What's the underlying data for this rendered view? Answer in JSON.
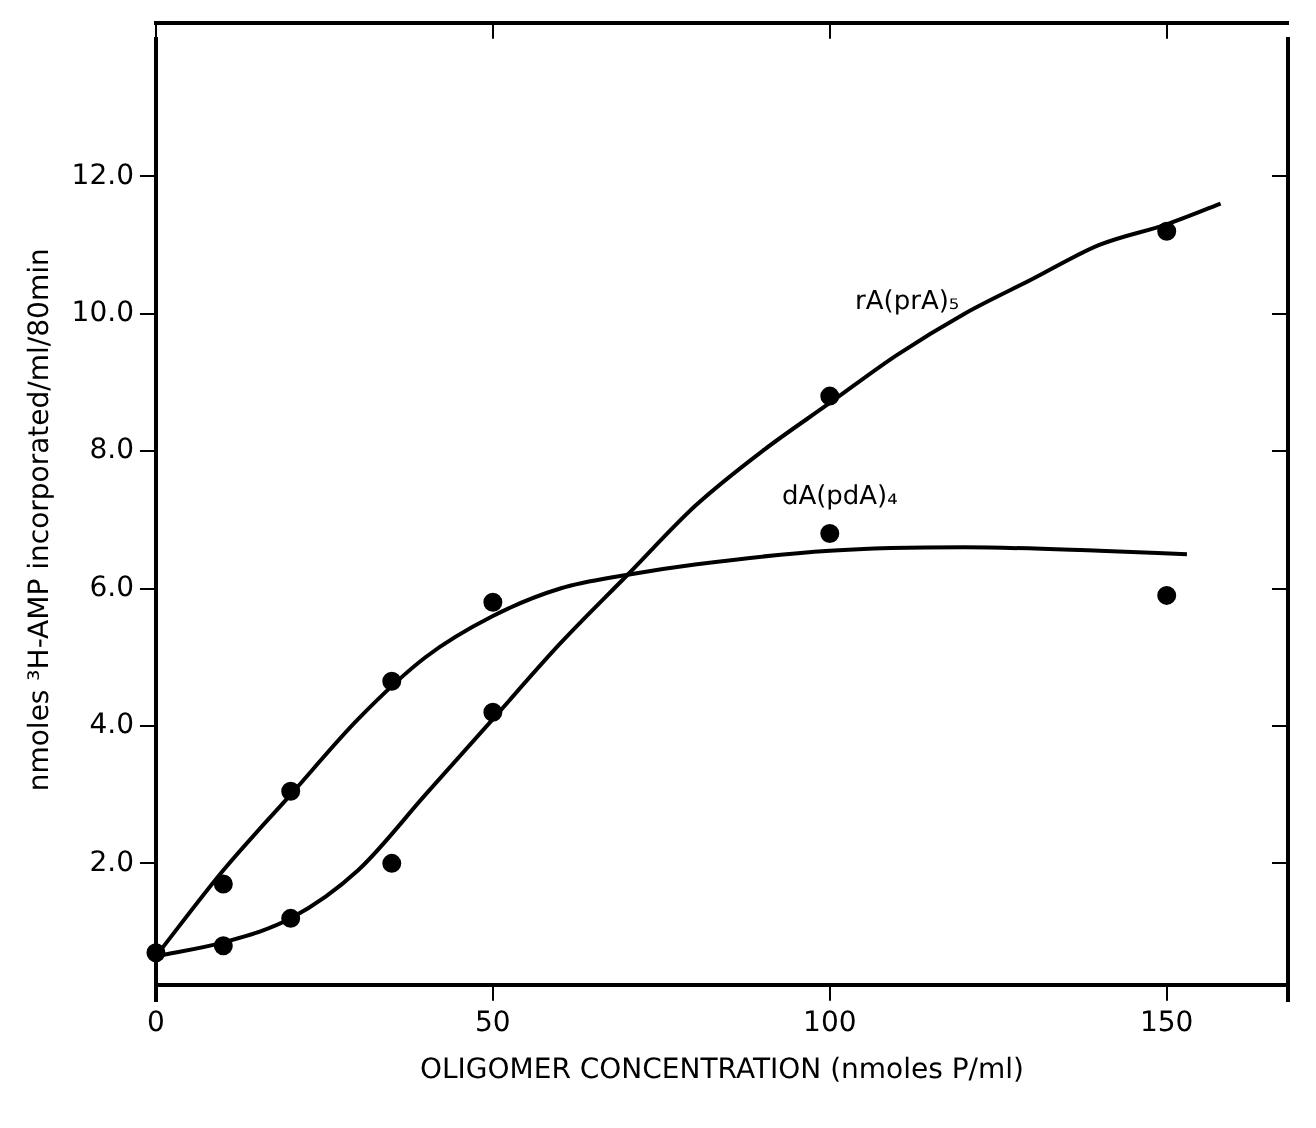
{
  "chart_data": {
    "type": "scatter",
    "xlabel": "OLIGOMER CONCENTRATION (nmoles P/ml)",
    "ylabel": "nmoles ³H-AMP incorporated/ml/80min",
    "xlim": [
      0,
      168
    ],
    "xticks": [
      0,
      50,
      100,
      150
    ],
    "ylim": [
      0,
      14
    ],
    "yticks": [
      {
        "value": 2,
        "label": "2.0"
      },
      {
        "value": 4,
        "label": "4.0"
      },
      {
        "value": 6,
        "label": "6.0"
      },
      {
        "value": 8,
        "label": "8.0"
      },
      {
        "value": 10,
        "label": "10.0"
      },
      {
        "value": 12,
        "label": "12.0"
      }
    ],
    "grid": false,
    "legend": false,
    "marker": "circle",
    "series": [
      {
        "color": "#000000",
        "x": [
          0,
          10,
          20,
          35,
          50,
          100,
          150
        ],
        "values": [
          0.7,
          0.8,
          1.2,
          2.0,
          4.2,
          8.8,
          11.2
        ]
      },
      {
        "color": "#000000",
        "x": [
          10,
          20,
          35,
          50,
          100,
          150
        ],
        "values": [
          1.7,
          3.05,
          4.65,
          5.8,
          6.8,
          5.9
        ]
      },
      {
        "type": "line",
        "name": "rA(prA)₅",
        "color": "#000000",
        "marker": "none",
        "x": [
          0,
          10,
          20,
          30,
          40,
          50,
          60,
          70,
          80,
          90,
          100,
          110,
          120,
          130,
          140,
          150,
          158
        ],
        "values": [
          0.65,
          0.85,
          1.2,
          1.9,
          3.0,
          4.1,
          5.2,
          6.2,
          7.2,
          8.0,
          8.7,
          9.4,
          10.0,
          10.5,
          11.0,
          11.3,
          11.6
        ]
      },
      {
        "type": "line",
        "name": "dA(pdA)₄",
        "color": "#000000",
        "marker": "none",
        "x": [
          0,
          10,
          20,
          30,
          40,
          50,
          60,
          70,
          80,
          100,
          120,
          140,
          153
        ],
        "values": [
          0.65,
          1.9,
          3.0,
          4.1,
          5.0,
          5.6,
          6.0,
          6.2,
          6.35,
          6.55,
          6.6,
          6.55,
          6.5
        ]
      }
    ]
  }
}
